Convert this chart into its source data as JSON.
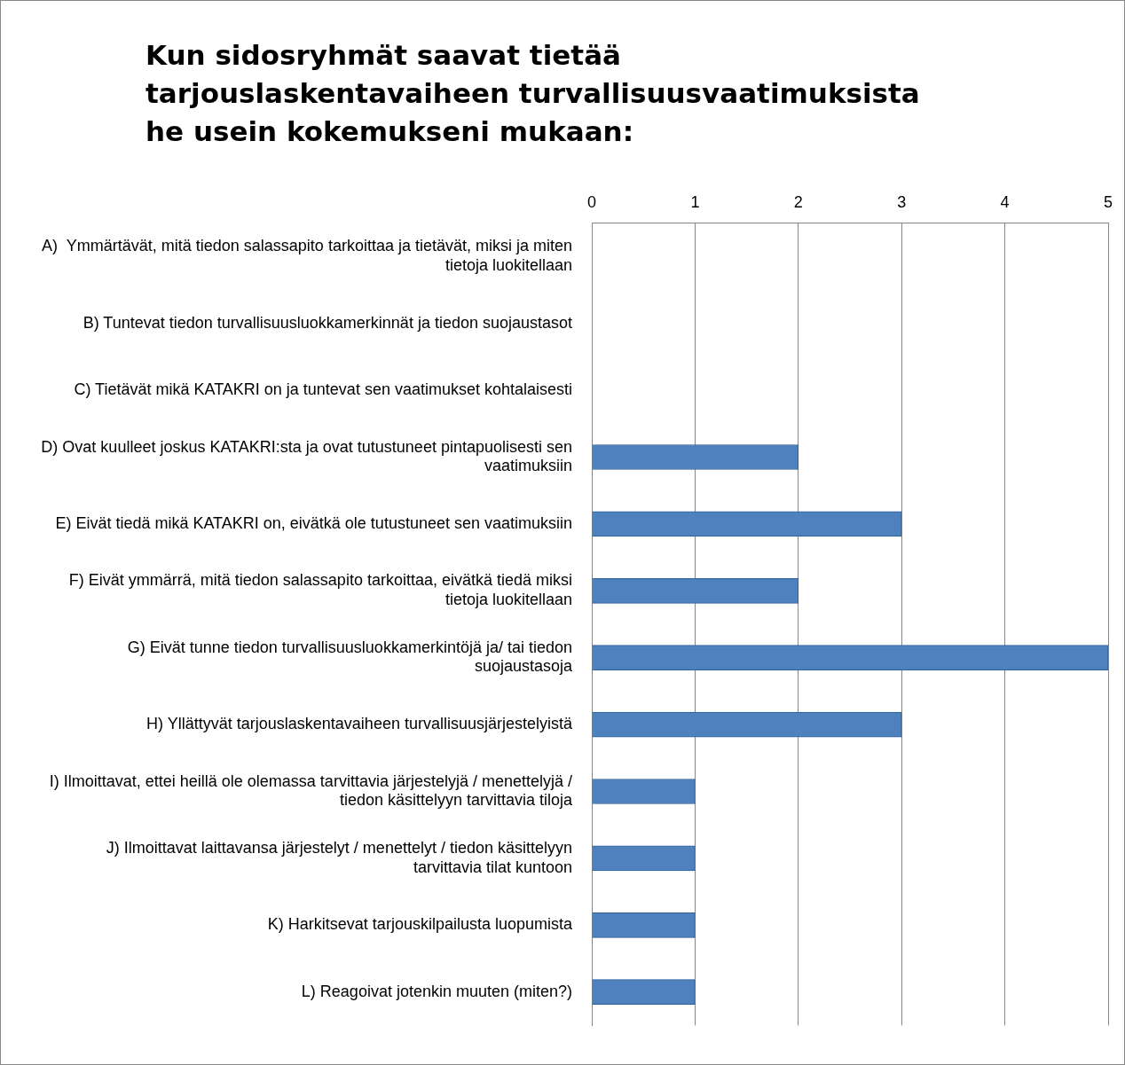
{
  "chart_data": {
    "type": "bar",
    "orientation": "horizontal",
    "title": "Kun sidosryhmät saavat tietää tarjouslaskentavaiheen turvallisuusvaatimuksista he usein kokemukseni mukaan:",
    "categories": [
      "A)  Ymmärtävät, mitä tiedon salassapito tarkoittaa ja tietävät, miksi ja miten tietoja luokitellaan",
      "B) Tuntevat tiedon turvallisuusluokkamerkinnät ja tiedon suojaustasot",
      "C) Tietävät mikä KATAKRI on ja tuntevat sen vaatimukset kohtalaisesti",
      "D) Ovat kuulleet joskus KATAKRI:sta ja ovat tutustuneet pintapuolisesti sen vaatimuksiin",
      "E) Eivät tiedä mikä KATAKRI on, eivätkä ole tutustuneet sen vaatimuksiin",
      "F) Eivät ymmärrä, mitä tiedon salassapito tarkoittaa, eivätkä tiedä miksi tietoja luokitellaan",
      "G) Eivät tunne tiedon turvallisuusluokkamerkintöjä ja/ tai tiedon suojaustasoja",
      "H) Yllättyvät tarjouslaskentavaiheen turvallisuusjärjestelyistä",
      "I) Ilmoittavat, ettei heillä ole olemassa tarvittavia järjestelyjä / menettelyjä / tiedon käsittelyyn tarvittavia tiloja",
      "J) Ilmoittavat laittavansa järjestelyt / menettelyt / tiedon käsittelyyn tarvittavia tilat kuntoon",
      "K) Harkitsevat tarjouskilpailusta luopumista",
      "L) Reagoivat jotenkin muuten (miten?)"
    ],
    "values": [
      0,
      0,
      0,
      2,
      3,
      2,
      5,
      3,
      1,
      1,
      1,
      1
    ],
    "color": "#4f81bd",
    "xlim": [
      0,
      5
    ],
    "xticks": [
      0,
      1,
      2,
      3,
      4,
      5
    ],
    "grid": "x",
    "legend": false
  }
}
